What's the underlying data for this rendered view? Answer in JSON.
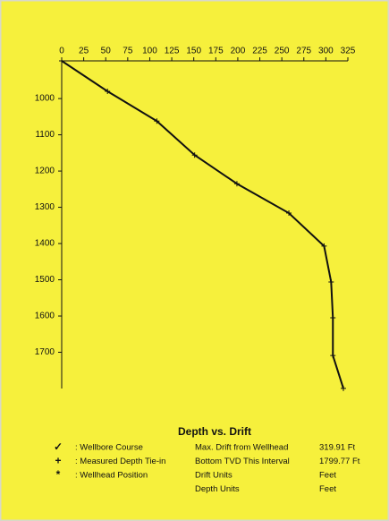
{
  "chart_data": {
    "type": "line",
    "x": [
      0,
      52,
      108,
      151,
      199,
      258,
      298,
      306,
      308,
      308,
      319.91
    ],
    "values": [
      896,
      980,
      1062,
      1156,
      1235,
      1316,
      1407,
      1506,
      1605,
      1709,
      1799.77
    ],
    "color": "#111111",
    "xlim": [
      0,
      325
    ],
    "xticks": [
      0,
      25,
      50,
      75,
      100,
      125,
      150,
      175,
      200,
      225,
      250,
      275,
      300,
      325
    ],
    "ylim": [
      896,
      1800
    ],
    "yticks": [
      1000,
      1100,
      1200,
      1300,
      1400,
      1500,
      1600,
      1700
    ],
    "y_inverted": true,
    "x_axis_position": "top",
    "grid": false,
    "title": "Depth vs. Drift",
    "legend": [
      {
        "symbol": "✓",
        "label": ": Wellbore Course"
      },
      {
        "symbol": "+",
        "label": ": Measured Depth Tie-in"
      },
      {
        "symbol": "*",
        "label": ": Wellhead Position"
      }
    ],
    "info": [
      [
        "Max. Drift from Wellhead",
        "319.91 Ft"
      ],
      [
        "Bottom TVD This Interval",
        "1799.77 Ft"
      ],
      [
        "Drift Units",
        "Feet"
      ],
      [
        "Depth Units",
        "Feet"
      ]
    ]
  }
}
